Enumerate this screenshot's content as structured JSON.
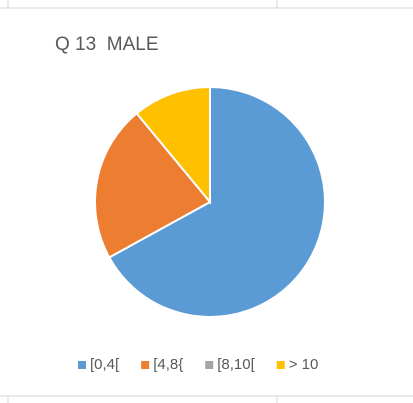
{
  "chart_data": {
    "type": "pie",
    "title": "Q 13  MALE",
    "categories": [
      "[0,4[",
      "[4,8{",
      "[8,10[",
      "> 10"
    ],
    "values": [
      67,
      22,
      0,
      11
    ],
    "colors": [
      "#5b9bd5",
      "#ed7d31",
      "#a5a5a5",
      "#ffc000"
    ],
    "legend": "bottom"
  }
}
